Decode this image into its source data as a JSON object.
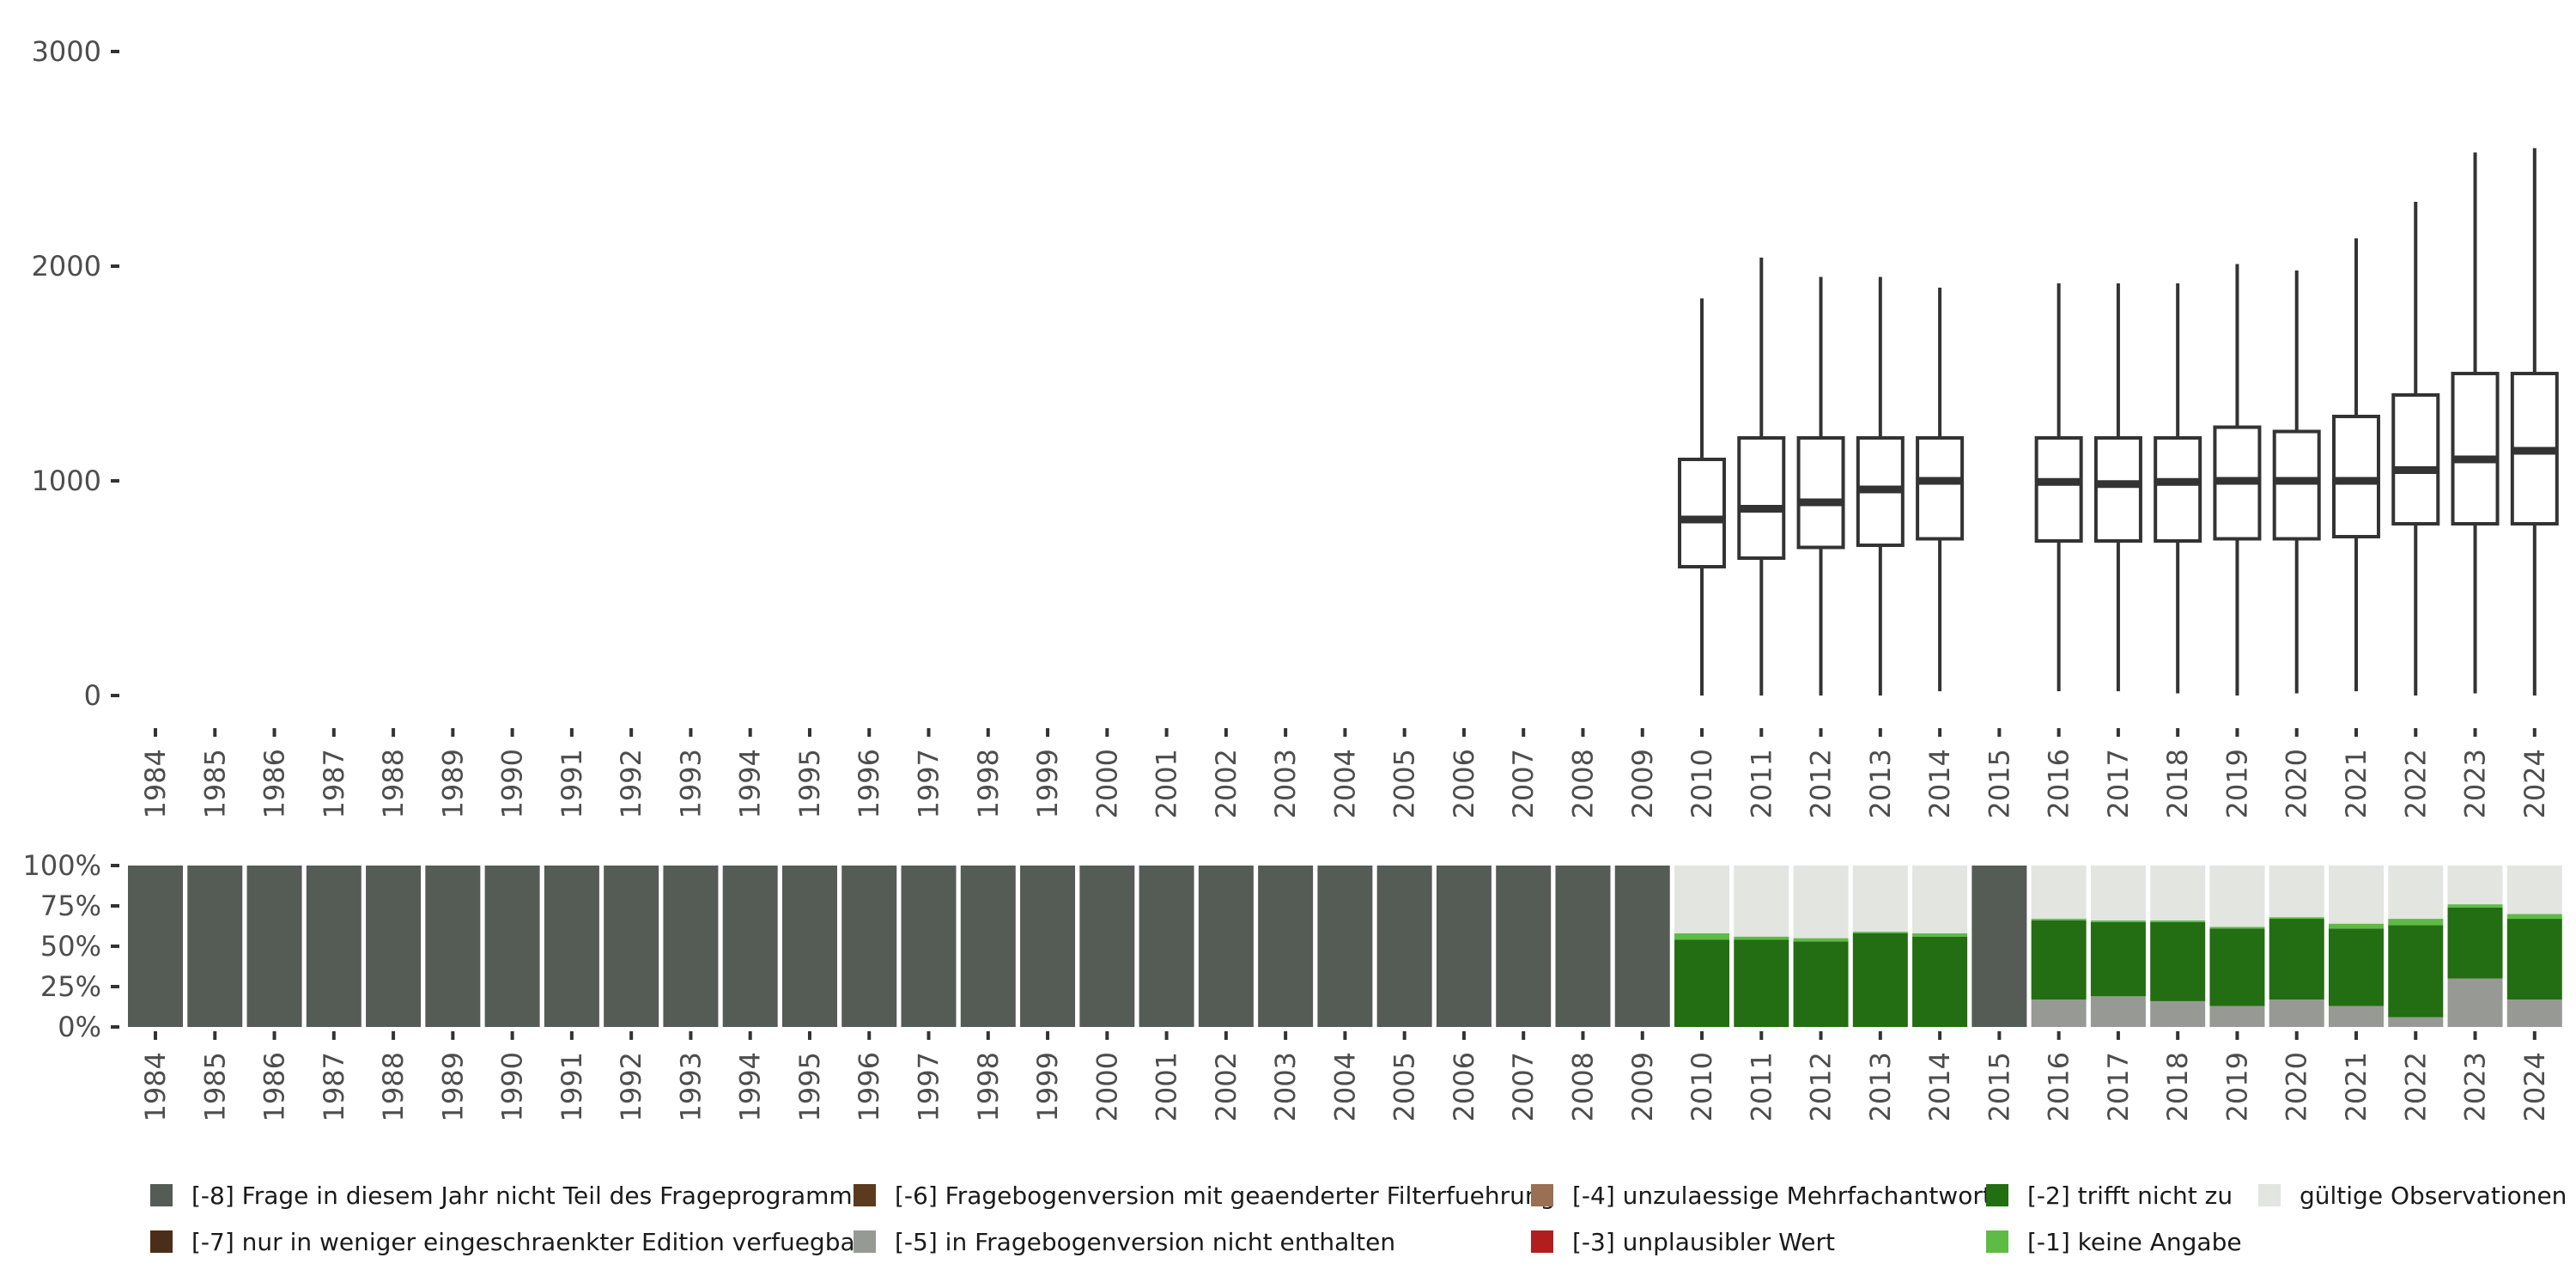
{
  "chart_data": [
    {
      "type": "boxplot",
      "x": [
        "1984",
        "1985",
        "1986",
        "1987",
        "1988",
        "1989",
        "1990",
        "1991",
        "1992",
        "1993",
        "1994",
        "1995",
        "1996",
        "1997",
        "1998",
        "1999",
        "2000",
        "2001",
        "2002",
        "2003",
        "2004",
        "2005",
        "2006",
        "2007",
        "2008",
        "2009",
        "2010",
        "2011",
        "2012",
        "2013",
        "2014",
        "2015",
        "2016",
        "2017",
        "2018",
        "2019",
        "2020",
        "2021",
        "2022",
        "2023",
        "2024"
      ],
      "ylim": [
        0,
        3000
      ],
      "yticks": [
        "0",
        "1000",
        "2000",
        "3000"
      ],
      "boxes": [
        {
          "year": "2010",
          "min": 0,
          "q1": 600,
          "median": 820,
          "q3": 1100,
          "max": 1850
        },
        {
          "year": "2011",
          "min": 0,
          "q1": 640,
          "median": 870,
          "q3": 1200,
          "max": 2040
        },
        {
          "year": "2012",
          "min": 0,
          "q1": 690,
          "median": 900,
          "q3": 1200,
          "max": 1950
        },
        {
          "year": "2013",
          "min": 0,
          "q1": 700,
          "median": 960,
          "q3": 1200,
          "max": 1950
        },
        {
          "year": "2014",
          "min": 20,
          "q1": 730,
          "median": 1000,
          "q3": 1200,
          "max": 1900
        },
        {
          "year": "2016",
          "min": 20,
          "q1": 720,
          "median": 995,
          "q3": 1200,
          "max": 1920
        },
        {
          "year": "2017",
          "min": 20,
          "q1": 720,
          "median": 985,
          "q3": 1200,
          "max": 1920
        },
        {
          "year": "2018",
          "min": 10,
          "q1": 720,
          "median": 995,
          "q3": 1200,
          "max": 1920
        },
        {
          "year": "2019",
          "min": 0,
          "q1": 730,
          "median": 1000,
          "q3": 1250,
          "max": 2010
        },
        {
          "year": "2020",
          "min": 10,
          "q1": 730,
          "median": 1000,
          "q3": 1230,
          "max": 1980
        },
        {
          "year": "2021",
          "min": 20,
          "q1": 740,
          "median": 1000,
          "q3": 1300,
          "max": 2130
        },
        {
          "year": "2022",
          "min": 0,
          "q1": 800,
          "median": 1050,
          "q3": 1400,
          "max": 2300
        },
        {
          "year": "2023",
          "min": 10,
          "q1": 800,
          "median": 1100,
          "q3": 1500,
          "max": 2530
        },
        {
          "year": "2024",
          "min": 0,
          "q1": 800,
          "median": 1140,
          "q3": 1500,
          "max": 2550
        }
      ]
    },
    {
      "type": "stacked-bar",
      "x": [
        "1984",
        "1985",
        "1986",
        "1987",
        "1988",
        "1989",
        "1990",
        "1991",
        "1992",
        "1993",
        "1994",
        "1995",
        "1996",
        "1997",
        "1998",
        "1999",
        "2000",
        "2001",
        "2002",
        "2003",
        "2004",
        "2005",
        "2006",
        "2007",
        "2008",
        "2009",
        "2010",
        "2011",
        "2012",
        "2013",
        "2014",
        "2015",
        "2016",
        "2017",
        "2018",
        "2019",
        "2020",
        "2021",
        "2022",
        "2023",
        "2024"
      ],
      "ylim": [
        0,
        100
      ],
      "yticks": [
        "0%",
        "25%",
        "50%",
        "75%",
        "100%"
      ],
      "legend_position": "bottom",
      "series": [
        {
          "name": "[-8] Frage in diesem Jahr nicht Teil des Frageprogramms",
          "color": "#555b55",
          "values": [
            100,
            100,
            100,
            100,
            100,
            100,
            100,
            100,
            100,
            100,
            100,
            100,
            100,
            100,
            100,
            100,
            100,
            100,
            100,
            100,
            100,
            100,
            100,
            100,
            100,
            100,
            0,
            0,
            0,
            0,
            0,
            100,
            0,
            0,
            0,
            0,
            0,
            0,
            0,
            0,
            0
          ]
        },
        {
          "name": "[-7] nur in weniger eingeschraenkter Edition verfuegbar",
          "color": "#4a2e17",
          "values": [
            0,
            0,
            0,
            0,
            0,
            0,
            0,
            0,
            0,
            0,
            0,
            0,
            0,
            0,
            0,
            0,
            0,
            0,
            0,
            0,
            0,
            0,
            0,
            0,
            0,
            0,
            0,
            0,
            0,
            0,
            0,
            0,
            0,
            0,
            0,
            0,
            0,
            0,
            0,
            0,
            0
          ]
        },
        {
          "name": "[-6] Fragebogenversion mit geaenderter Filterfuehrung",
          "color": "#5c3a1e",
          "values": [
            0,
            0,
            0,
            0,
            0,
            0,
            0,
            0,
            0,
            0,
            0,
            0,
            0,
            0,
            0,
            0,
            0,
            0,
            0,
            0,
            0,
            0,
            0,
            0,
            0,
            0,
            0,
            0,
            0,
            0,
            0,
            0,
            0,
            0,
            0,
            0,
            0,
            0,
            0,
            0,
            0
          ]
        },
        {
          "name": "[-5] in Fragebogenversion nicht enthalten",
          "color": "#979a94",
          "values": [
            0,
            0,
            0,
            0,
            0,
            0,
            0,
            0,
            0,
            0,
            0,
            0,
            0,
            0,
            0,
            0,
            0,
            0,
            0,
            0,
            0,
            0,
            0,
            0,
            0,
            0,
            0,
            0,
            0,
            0,
            0,
            0,
            17,
            19,
            16,
            13,
            17,
            13,
            6,
            30,
            17
          ]
        },
        {
          "name": "[-4] unzulaessige Mehrfachantwort",
          "color": "#9a7055",
          "values": [
            0,
            0,
            0,
            0,
            0,
            0,
            0,
            0,
            0,
            0,
            0,
            0,
            0,
            0,
            0,
            0,
            0,
            0,
            0,
            0,
            0,
            0,
            0,
            0,
            0,
            0,
            0,
            0,
            0,
            0,
            0,
            0,
            0,
            0,
            0,
            0,
            0,
            0,
            0,
            0,
            0
          ]
        },
        {
          "name": "[-3] unplausibler Wert",
          "color": "#b21e1e",
          "values": [
            0,
            0,
            0,
            0,
            0,
            0,
            0,
            0,
            0,
            0,
            0,
            0,
            0,
            0,
            0,
            0,
            0,
            0,
            0,
            0,
            0,
            0,
            0,
            0,
            0,
            0,
            0,
            0,
            0,
            0,
            0,
            0,
            0,
            0,
            0,
            0,
            0,
            0,
            0,
            0,
            0
          ]
        },
        {
          "name": "[-2] trifft nicht zu",
          "color": "#236d12",
          "values": [
            0,
            0,
            0,
            0,
            0,
            0,
            0,
            0,
            0,
            0,
            0,
            0,
            0,
            0,
            0,
            0,
            0,
            0,
            0,
            0,
            0,
            0,
            0,
            0,
            0,
            0,
            54,
            54,
            53,
            58,
            56,
            0,
            49,
            46,
            49,
            48,
            50,
            48,
            57,
            44,
            50
          ]
        },
        {
          "name": "[-1] keine Angabe",
          "color": "#5dbb46",
          "values": [
            0,
            0,
            0,
            0,
            0,
            0,
            0,
            0,
            0,
            0,
            0,
            0,
            0,
            0,
            0,
            0,
            0,
            0,
            0,
            0,
            0,
            0,
            0,
            0,
            0,
            0,
            4,
            2,
            2,
            1,
            2,
            0,
            1,
            1,
            1,
            1,
            1,
            3,
            4,
            2,
            3
          ]
        },
        {
          "name": "gültige Observationen",
          "color": "#e2e5e0",
          "values": [
            0,
            0,
            0,
            0,
            0,
            0,
            0,
            0,
            0,
            0,
            0,
            0,
            0,
            0,
            0,
            0,
            0,
            0,
            0,
            0,
            0,
            0,
            0,
            0,
            0,
            0,
            42,
            44,
            45,
            41,
            42,
            0,
            33,
            34,
            34,
            38,
            32,
            36,
            33,
            24,
            30
          ]
        }
      ]
    }
  ]
}
